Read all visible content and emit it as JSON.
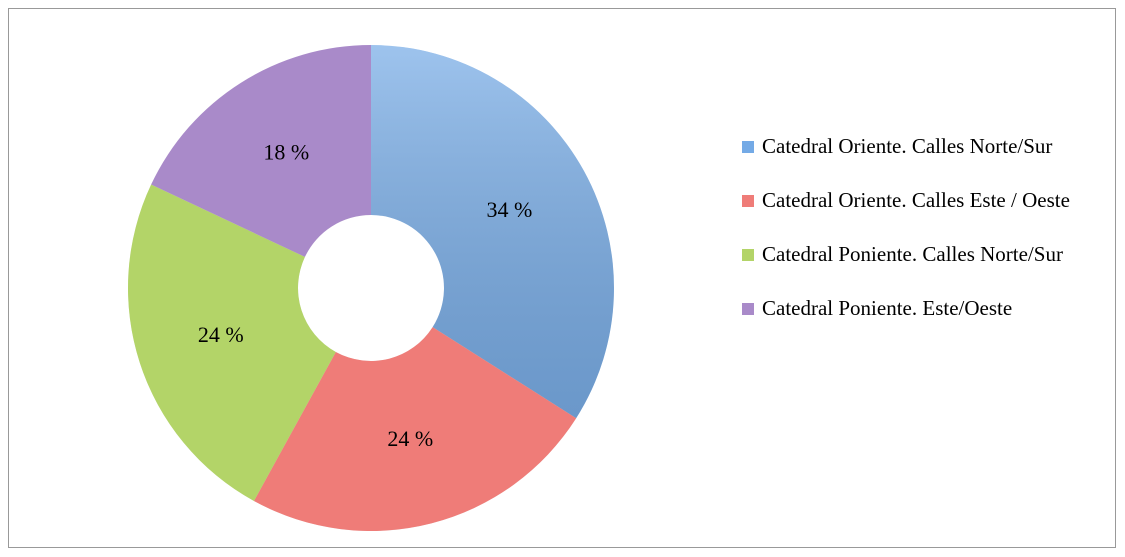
{
  "chart_data": {
    "type": "donut",
    "categories": [
      "Catedral Oriente. Calles Norte/Sur",
      "Catedral Oriente. Calles Este / Oeste",
      "Catedral Poniente. Calles Norte/Sur",
      "Catedral Poniente. Este/Oeste"
    ],
    "values": [
      34,
      24,
      24,
      18
    ],
    "value_labels": [
      "34 %",
      "24 %",
      "24 %",
      "18 %"
    ],
    "colors": [
      "#74aae6",
      "#ef7c78",
      "#b3d468",
      "#a98ac9"
    ],
    "legend": "right"
  }
}
